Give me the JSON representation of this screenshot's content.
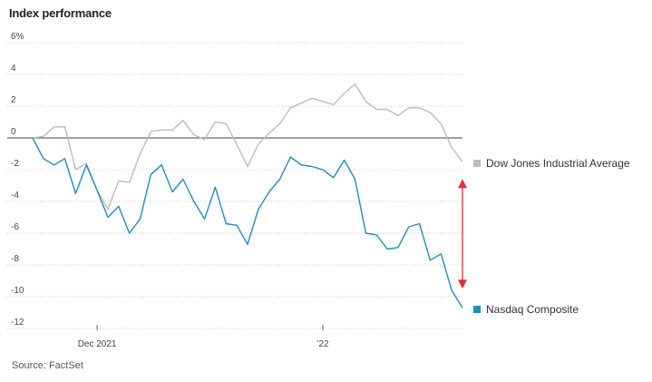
{
  "chart_data": {
    "type": "line",
    "title": "Index performance",
    "source": "Source: FactSet",
    "ylim": [
      -12,
      6
    ],
    "y_ticks": [
      6,
      4,
      2,
      0,
      -2,
      -4,
      -6,
      -8,
      -10,
      -12
    ],
    "y_tick_labels": [
      "6%",
      "4",
      "2",
      "0",
      "-2",
      "-4",
      "-6",
      "-8",
      "-10",
      "-12"
    ],
    "x_tick_labels": [
      {
        "label": "Dec 2021",
        "index": 6
      },
      {
        "label": "’22",
        "index": 27
      }
    ],
    "grid": "horizontal dotted",
    "zero_line": true,
    "legend": "right, at line ends",
    "series": [
      {
        "name": "Dow Jones Industrial Average",
        "color": "#bdbdbd",
        "values": [
          0,
          0.1,
          0.7,
          0.7,
          -2.0,
          -1.6,
          -3.3,
          -4.5,
          -2.7,
          -2.8,
          -1.0,
          0.4,
          0.5,
          0.5,
          1.1,
          0.2,
          -0.1,
          1.0,
          0.9,
          -0.4,
          -1.8,
          -0.4,
          0.3,
          0.9,
          1.9,
          2.2,
          2.5,
          2.3,
          2.1,
          2.8,
          3.4,
          2.3,
          1.8,
          1.8,
          1.4,
          1.9,
          1.9,
          1.6,
          0.9,
          -0.6,
          -1.5
        ]
      },
      {
        "name": "Nasdaq Composite",
        "color": "#1e8fbd",
        "values": [
          0,
          -1.3,
          -1.7,
          -1.3,
          -3.5,
          -1.7,
          -3.3,
          -5.0,
          -4.3,
          -6.0,
          -5.1,
          -2.3,
          -1.7,
          -3.4,
          -2.6,
          -4.0,
          -5.1,
          -3.1,
          -5.4,
          -5.5,
          -6.7,
          -4.5,
          -3.4,
          -2.6,
          -1.2,
          -1.7,
          -1.8,
          -2.0,
          -2.5,
          -1.4,
          -2.6,
          -6.0,
          -6.1,
          -7.0,
          -6.9,
          -5.6,
          -5.4,
          -7.7,
          -7.3,
          -9.6,
          -10.7
        ]
      }
    ],
    "annotation": "red double-headed arrow spanning the gap between the two series at the last date"
  }
}
